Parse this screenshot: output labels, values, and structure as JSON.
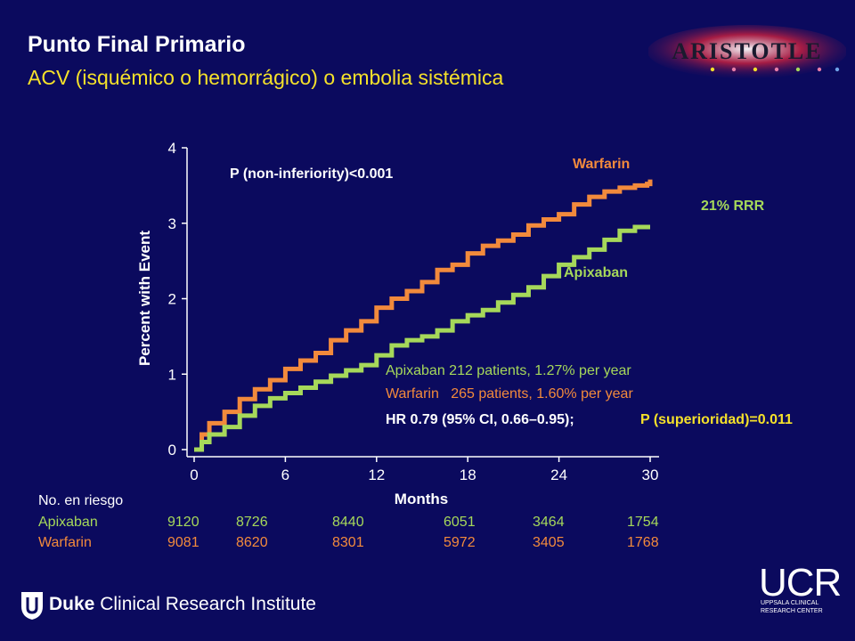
{
  "slide": {
    "title": "Punto Final Primario",
    "subtitle": "ACV (isquémico o hemorrágico) o embolia sistémica",
    "colors": {
      "background": "#0b0a5e",
      "title": "#ffffff",
      "subtitle": "#f5e12a",
      "apixaban": "#a6d85a",
      "warfarin": "#f28a3c",
      "highlight": "#f5e12a"
    }
  },
  "logos": {
    "trial": "ARISTOTLE",
    "institute_prefix": "Duke",
    "institute_rest": " Clinical Research Institute",
    "ucr_main": "UCR",
    "ucr_line1": "UPPSALA CLINICAL",
    "ucr_line2": "RESEARCH CENTER"
  },
  "chart_data": {
    "type": "line",
    "title": "",
    "xlabel": "Months",
    "ylabel": "Percent with Event",
    "xlim": [
      0,
      30
    ],
    "ylim": [
      0,
      4
    ],
    "x_ticks": [
      0,
      6,
      12,
      18,
      24,
      30
    ],
    "y_ticks": [
      0,
      1,
      2,
      3,
      4
    ],
    "grid": false,
    "series": [
      {
        "name": "Warfarin",
        "color": "#f28a3c",
        "points": [
          [
            0,
            0
          ],
          [
            0.5,
            0.2
          ],
          [
            1,
            0.35
          ],
          [
            2,
            0.5
          ],
          [
            3,
            0.67
          ],
          [
            4,
            0.8
          ],
          [
            5,
            0.92
          ],
          [
            6,
            1.07
          ],
          [
            7,
            1.18
          ],
          [
            8,
            1.28
          ],
          [
            9,
            1.45
          ],
          [
            10,
            1.58
          ],
          [
            11,
            1.7
          ],
          [
            12,
            1.88
          ],
          [
            13,
            2.0
          ],
          [
            14,
            2.1
          ],
          [
            15,
            2.22
          ],
          [
            16,
            2.38
          ],
          [
            17,
            2.45
          ],
          [
            18,
            2.6
          ],
          [
            19,
            2.7
          ],
          [
            20,
            2.77
          ],
          [
            21,
            2.85
          ],
          [
            22,
            2.97
          ],
          [
            23,
            3.05
          ],
          [
            24,
            3.12
          ],
          [
            25,
            3.25
          ],
          [
            26,
            3.35
          ],
          [
            27,
            3.42
          ],
          [
            28,
            3.47
          ],
          [
            29,
            3.5
          ],
          [
            29.8,
            3.52
          ],
          [
            30,
            3.58
          ]
        ]
      },
      {
        "name": "Apixaban",
        "color": "#a6d85a",
        "points": [
          [
            0,
            0
          ],
          [
            0.5,
            0.1
          ],
          [
            1,
            0.2
          ],
          [
            2,
            0.3
          ],
          [
            3,
            0.45
          ],
          [
            4,
            0.58
          ],
          [
            5,
            0.68
          ],
          [
            6,
            0.75
          ],
          [
            7,
            0.82
          ],
          [
            8,
            0.9
          ],
          [
            9,
            0.98
          ],
          [
            10,
            1.05
          ],
          [
            11,
            1.12
          ],
          [
            12,
            1.25
          ],
          [
            13,
            1.38
          ],
          [
            14,
            1.45
          ],
          [
            15,
            1.5
          ],
          [
            16,
            1.58
          ],
          [
            17,
            1.7
          ],
          [
            18,
            1.78
          ],
          [
            19,
            1.85
          ],
          [
            20,
            1.95
          ],
          [
            21,
            2.05
          ],
          [
            22,
            2.15
          ],
          [
            23,
            2.3
          ],
          [
            24,
            2.45
          ],
          [
            25,
            2.55
          ],
          [
            26,
            2.65
          ],
          [
            27,
            2.78
          ],
          [
            28,
            2.9
          ],
          [
            29,
            2.95
          ],
          [
            30,
            2.95
          ]
        ]
      }
    ],
    "annotations": {
      "p_noninferiority": "P (non-inferiority)<0.001",
      "rrr": "21% RRR",
      "apixaban_stats": "Apixaban 212 patients, 1.27% per year",
      "warfarin_stats": "Warfarin   265 patients, 1.60% per year",
      "hr_text": "HR 0.79 (95% CI, 0.66–0.95);",
      "p_superiority": "P (superioridad)=0.011"
    }
  },
  "risk_table": {
    "title": "No. en riesgo",
    "rows": [
      {
        "label": "Apixaban",
        "values": [
          "9120",
          "8726",
          "8440",
          "6051",
          "3464",
          "1754"
        ]
      },
      {
        "label": "Warfarin",
        "values": [
          "9081",
          "8620",
          "8301",
          "5972",
          "3405",
          "1768"
        ]
      }
    ]
  }
}
